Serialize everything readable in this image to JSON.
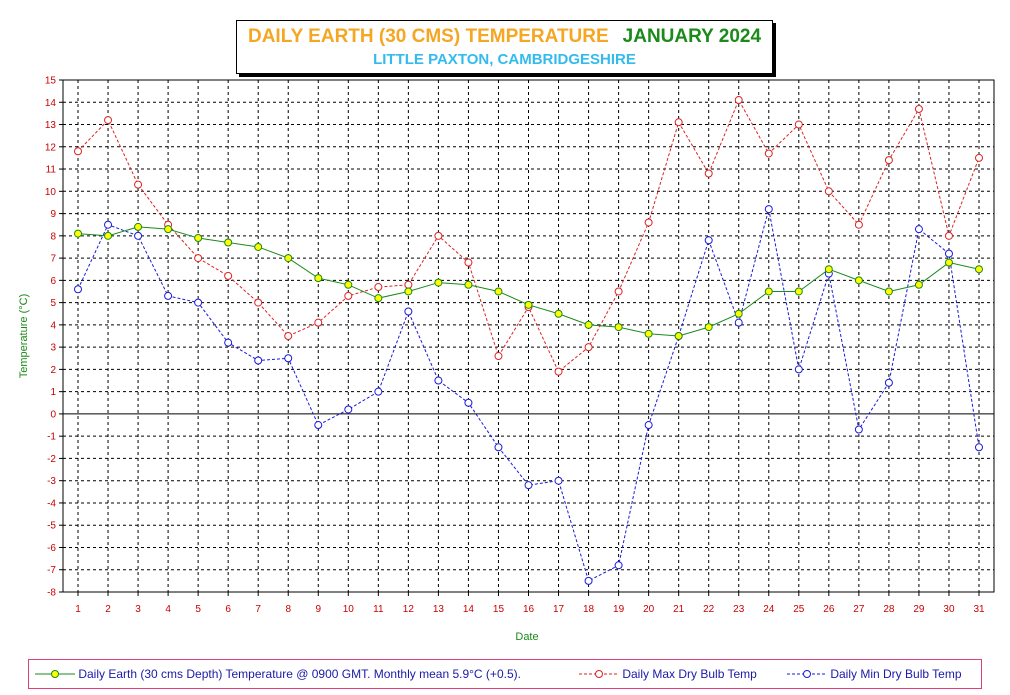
{
  "title": {
    "main": "DAILY EARTH (30 CMS) TEMPERATURE",
    "month": "JANUARY 2024",
    "subtitle": "LITTLE PAXTON, CAMBRIDGESHIRE"
  },
  "colors": {
    "earth_line": "#1a8a1a",
    "earth_marker": "#ffff00",
    "max_line": "#dd2222",
    "min_line": "#1a1add",
    "axis_label": "#1a8a1a",
    "tick_label": "#cc0000"
  },
  "chart_data": {
    "type": "line",
    "title": "DAILY EARTH (30 CMS) TEMPERATURE   JANUARY 2024",
    "subtitle": "LITTLE PAXTON, CAMBRIDGESHIRE",
    "xlabel": "Date",
    "ylabel": "Temperature (°C)",
    "ylim": [
      -8,
      15
    ],
    "xlim": [
      1,
      31
    ],
    "grid": true,
    "legend_position": "bottom",
    "x": [
      1,
      2,
      3,
      4,
      5,
      6,
      7,
      8,
      9,
      10,
      11,
      12,
      13,
      14,
      15,
      16,
      17,
      18,
      19,
      20,
      21,
      22,
      23,
      24,
      25,
      26,
      27,
      28,
      29,
      30,
      31
    ],
    "series": [
      {
        "name": "Daily Earth (30 cms Depth) Temperature @ 0900 GMT. Monthly mean 5.9°C (+0.5).",
        "style": "solid",
        "values": [
          8.1,
          8.0,
          8.4,
          8.3,
          7.9,
          7.7,
          7.5,
          7.0,
          6.1,
          5.8,
          5.2,
          5.5,
          5.9,
          5.8,
          5.5,
          4.9,
          4.5,
          4.0,
          3.9,
          3.6,
          3.5,
          3.9,
          4.5,
          5.5,
          5.5,
          6.5,
          6.0,
          5.5,
          5.8,
          6.8,
          6.5
        ]
      },
      {
        "name": "Daily Max Dry Bulb Temp",
        "style": "dashed",
        "values": [
          11.8,
          13.2,
          10.3,
          8.5,
          7.0,
          6.2,
          5.0,
          3.5,
          4.1,
          5.3,
          5.7,
          5.8,
          8.0,
          6.8,
          2.6,
          4.8,
          1.9,
          3.0,
          5.5,
          8.6,
          13.1,
          10.8,
          14.1,
          11.7,
          13.0,
          10.0,
          8.5,
          11.4,
          13.7,
          8.0,
          11.5
        ]
      },
      {
        "name": "Daily Min Dry Bulb Temp",
        "style": "dashed",
        "values": [
          5.6,
          8.5,
          8.0,
          5.3,
          5.0,
          3.2,
          2.4,
          2.5,
          -0.5,
          0.2,
          1.0,
          4.6,
          1.5,
          0.5,
          -1.5,
          -3.2,
          -3.0,
          -7.5,
          -6.8,
          -0.5,
          3.5,
          7.8,
          4.1,
          9.2,
          2.0,
          6.3,
          -0.7,
          1.4,
          8.3,
          7.2,
          -1.5
        ]
      }
    ]
  }
}
